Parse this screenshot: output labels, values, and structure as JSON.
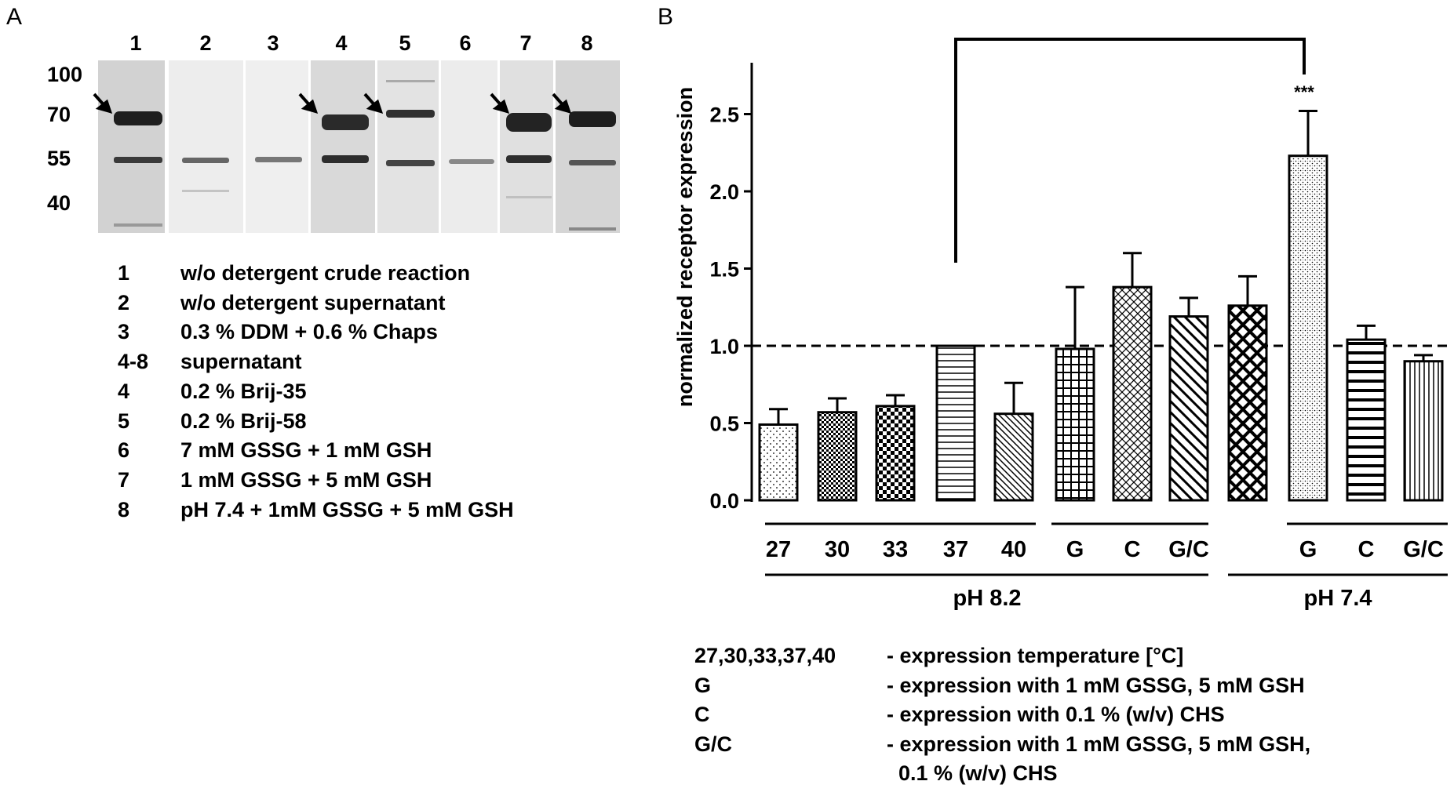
{
  "panel_a": {
    "letter": "A",
    "lanes": [
      "1",
      "2",
      "3",
      "4",
      "5",
      "6",
      "7",
      "8"
    ],
    "mw_markers": [
      "100",
      "70",
      "55",
      "40"
    ],
    "legend": [
      {
        "key": "1",
        "text": "w/o detergent crude reaction"
      },
      {
        "key": "2",
        "text": "w/o detergent supernatant"
      },
      {
        "key": "3",
        "text": "0.3 % DDM + 0.6 % Chaps"
      },
      {
        "key": "4-8",
        "text": "supernatant"
      },
      {
        "key": "4",
        "text": "0.2 % Brij-35"
      },
      {
        "key": "5",
        "text": "0.2 % Brij-58"
      },
      {
        "key": "6",
        "text": "7 mM GSSG + 1 mM GSH"
      },
      {
        "key": "7",
        "text": "1 mM GSSG + 5 mM GSH"
      },
      {
        "key": "8",
        "text": "pH 7.4 + 1mM GSSG + 5 mM GSH"
      }
    ]
  },
  "panel_b": {
    "letter": "B",
    "legend": [
      {
        "key": "27,30,33,37,40",
        "text": "- expression temperature [°C]"
      },
      {
        "key": "G",
        "text": "- expression with 1 mM GSSG, 5 mM GSH"
      },
      {
        "key": "C",
        "text": "- expression with 0.1 % (w/v) CHS"
      },
      {
        "key": "G/C",
        "text": "- expression with 1 mM GSSG, 5 mM GSH,"
      },
      {
        "key": "",
        "text": "  0.1 % (w/v) CHS"
      }
    ]
  },
  "chart_data": {
    "type": "bar",
    "ylabel": "normalized receptor expression",
    "xlabel": "",
    "ylim": [
      0,
      2.8
    ],
    "yticks": [
      "0.0",
      "0.5",
      "1.0",
      "1.5",
      "2.0",
      "2.5"
    ],
    "reference_line": 1.0,
    "categories": [
      "27",
      "30",
      "33",
      "37",
      "40",
      "G",
      "C",
      "G/C",
      "",
      "G",
      "C",
      "G/C"
    ],
    "values": [
      0.49,
      0.57,
      0.61,
      1.0,
      0.56,
      0.98,
      1.38,
      1.19,
      1.26,
      2.23,
      1.04,
      0.9
    ],
    "errors": [
      0.1,
      0.09,
      0.07,
      0.0,
      0.2,
      0.4,
      0.22,
      0.12,
      0.19,
      0.29,
      0.09,
      0.04
    ],
    "groups": [
      {
        "label": "pH 8.2",
        "from": 0,
        "to": 7
      },
      {
        "label": "pH 7.4",
        "from": 8,
        "to": 11
      }
    ],
    "significance": {
      "label": "***",
      "from": 3,
      "to": 9
    }
  }
}
